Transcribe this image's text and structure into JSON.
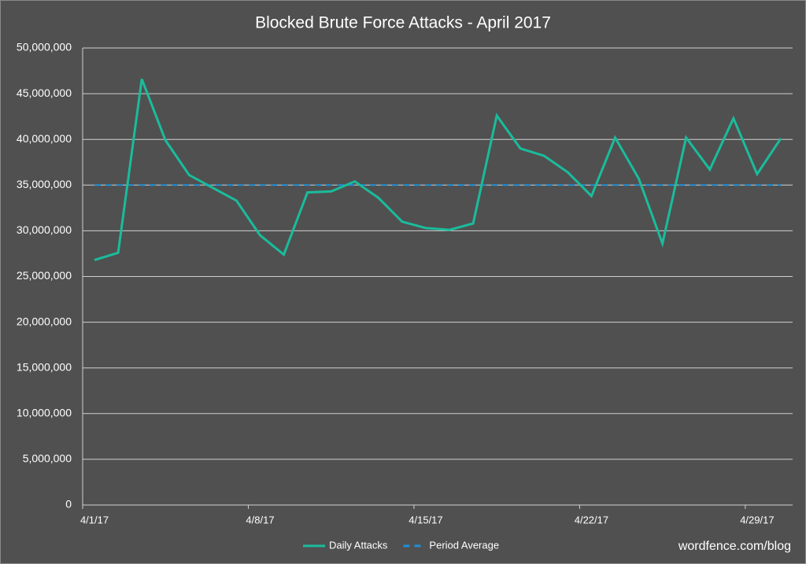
{
  "chart_data": {
    "type": "line",
    "title": "Blocked Brute Force Attacks - April 2017",
    "categories": [
      "4/1/17",
      null,
      null,
      null,
      null,
      null,
      null,
      "4/8/17",
      null,
      null,
      null,
      null,
      null,
      null,
      "4/15/17",
      null,
      null,
      null,
      null,
      null,
      null,
      "4/22/17",
      null,
      null,
      null,
      null,
      null,
      null,
      "4/29/17",
      null
    ],
    "series": [
      {
        "name": "Daily Attacks",
        "color": "#1abc9c",
        "dashed": false,
        "values": [
          26800000,
          27600000,
          46600000,
          39900000,
          36100000,
          34700000,
          33300000,
          29500000,
          27400000,
          34200000,
          34300000,
          35400000,
          33600000,
          31000000,
          30300000,
          30100000,
          30800000,
          42600000,
          39000000,
          38200000,
          36400000,
          33800000,
          40200000,
          35700000,
          28600000,
          40200000,
          36700000,
          42300000,
          36200000,
          40100000
        ]
      },
      {
        "name": "Period Average",
        "color": "#1f8fd6",
        "dashed": true,
        "values": [
          35000000,
          35000000,
          35000000,
          35000000,
          35000000,
          35000000,
          35000000,
          35000000,
          35000000,
          35000000,
          35000000,
          35000000,
          35000000,
          35000000,
          35000000,
          35000000,
          35000000,
          35000000,
          35000000,
          35000000,
          35000000,
          35000000,
          35000000,
          35000000,
          35000000,
          35000000,
          35000000,
          35000000,
          35000000,
          35000000
        ]
      }
    ],
    "ylim": [
      0,
      50000000
    ],
    "yticks": [
      0,
      {
        "value": 5000000,
        "label": "5,000,000"
      },
      {
        "value": 10000000,
        "label": "10,000,000"
      },
      {
        "value": 15000000,
        "label": "15,000,000"
      },
      {
        "value": 20000000,
        "label": "20,000,000"
      },
      {
        "value": 25000000,
        "label": "25,000,000"
      },
      {
        "value": 30000000,
        "label": "30,000,000"
      },
      {
        "value": 35000000,
        "label": "35,000,000"
      },
      {
        "value": 40000000,
        "label": "40,000,000"
      },
      {
        "value": 45000000,
        "label": "45,000,000"
      },
      {
        "value": 50000000,
        "label": "50,000,000"
      }
    ],
    "grid": true,
    "legend": "bottom",
    "source": "wordfence.com/blog"
  }
}
